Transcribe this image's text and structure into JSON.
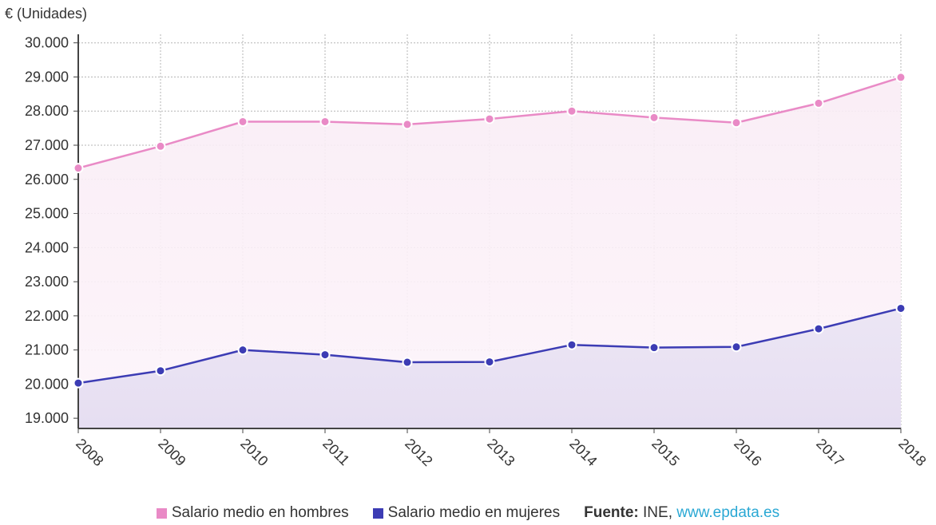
{
  "chart_data": {
    "type": "area",
    "unit_label": "€ (Unidades)",
    "categories": [
      "2008",
      "2009",
      "2010",
      "2011",
      "2012",
      "2013",
      "2014",
      "2015",
      "2016",
      "2017",
      "2018"
    ],
    "series": [
      {
        "name": "Salario medio en hombres",
        "color": "#e98ac6",
        "values": [
          26330,
          26970,
          27690,
          27690,
          27610,
          27770,
          28000,
          27810,
          27660,
          28230,
          28990
        ]
      },
      {
        "name": "Salario medio en mujeres",
        "color": "#3c3cb4",
        "values": [
          20030,
          20390,
          21000,
          20860,
          20640,
          20650,
          21150,
          21070,
          21090,
          21620,
          22220
        ]
      }
    ],
    "y_ticks": [
      "19.000",
      "20.000",
      "21.000",
      "22.000",
      "23.000",
      "24.000",
      "25.000",
      "26.000",
      "27.000",
      "28.000",
      "29.000",
      "30.000"
    ],
    "ylim": [
      18700,
      30250
    ],
    "grid": true,
    "legend_position": "bottom"
  },
  "source": {
    "label": "Fuente:",
    "text": "INE,",
    "link": "www.epdata.es"
  }
}
